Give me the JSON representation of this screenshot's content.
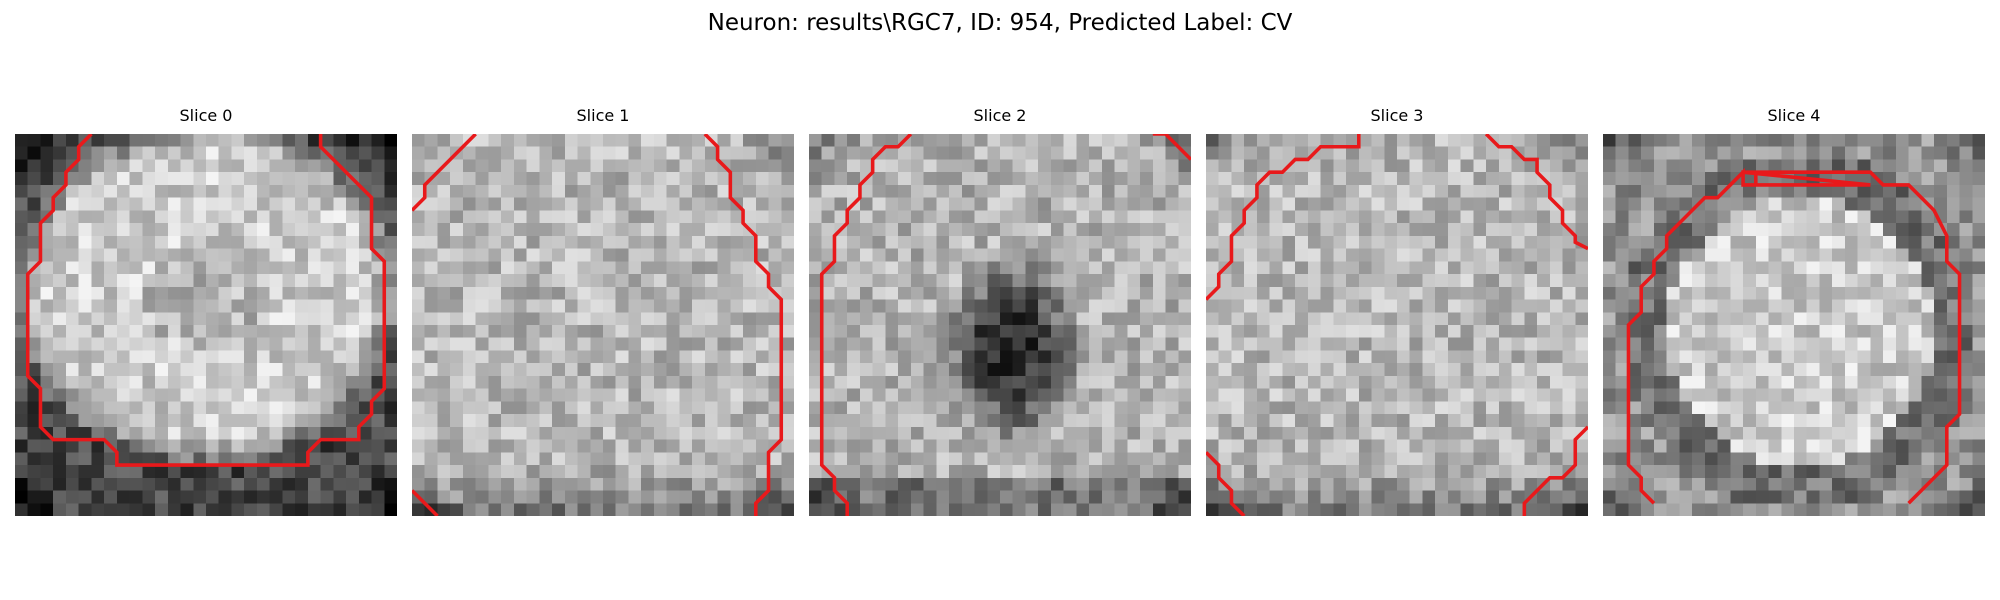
{
  "figure": {
    "title": "Neuron: results\\RGC7, ID: 954, Predicted Label: CV",
    "contour_color": "#e8191b",
    "colormap": "gray",
    "grid_size": 30
  },
  "slices": [
    {
      "label": "Slice 0",
      "kind": "soma"
    },
    {
      "label": "Slice 1",
      "kind": "uniform"
    },
    {
      "label": "Slice 2",
      "kind": "dark-center"
    },
    {
      "label": "Slice 3",
      "kind": "uniform"
    },
    {
      "label": "Slice 4",
      "kind": "ring"
    }
  ]
}
